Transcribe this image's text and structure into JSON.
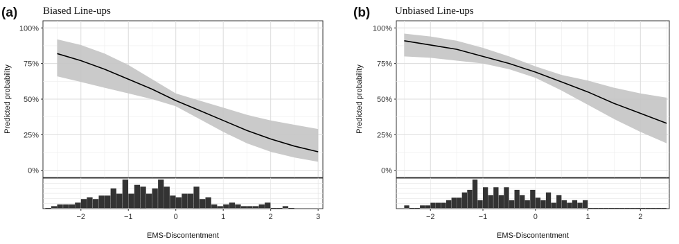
{
  "chart_data": [
    {
      "type": "line",
      "panel_label": "(a)",
      "title": "Biased Line-ups",
      "xlabel": "EMS-Discontentment",
      "ylabel": "Predicted probability",
      "xlim": [
        -2.8,
        3.1
      ],
      "ylim": [
        -0.05,
        1.05
      ],
      "x_ticks": [
        -2,
        -1,
        0,
        1,
        2,
        3
      ],
      "y_ticks": [
        0,
        0.25,
        0.5,
        0.75,
        1.0
      ],
      "y_tick_labels": [
        "0%",
        "25%",
        "50%",
        "75%",
        "100%"
      ],
      "grid": true,
      "series": [
        {
          "x": [
            -2.5,
            -2.0,
            -1.5,
            -1.0,
            -0.5,
            0.0,
            0.5,
            1.0,
            1.5,
            2.0,
            2.5,
            3.0
          ],
          "y": [
            0.82,
            0.77,
            0.71,
            0.64,
            0.57,
            0.49,
            0.42,
            0.35,
            0.28,
            0.22,
            0.17,
            0.13
          ],
          "lower": [
            0.66,
            0.62,
            0.58,
            0.54,
            0.5,
            0.45,
            0.36,
            0.27,
            0.19,
            0.13,
            0.09,
            0.06
          ],
          "upper": [
            0.92,
            0.88,
            0.82,
            0.74,
            0.64,
            0.54,
            0.49,
            0.44,
            0.39,
            0.35,
            0.32,
            0.29
          ]
        }
      ],
      "histogram": {
        "bin_start": -2.75,
        "bin_width": 0.125,
        "counts": [
          0,
          1,
          2,
          2,
          2,
          3,
          5,
          6,
          5,
          7,
          7,
          11,
          8,
          16,
          8,
          13,
          12,
          8,
          11,
          16,
          12,
          7,
          6,
          8,
          8,
          12,
          5,
          6,
          2,
          1,
          2,
          3,
          2,
          1,
          1,
          1,
          2,
          3,
          0,
          0,
          1,
          0
        ]
      }
    },
    {
      "type": "line",
      "panel_label": "(b)",
      "title": "Unbiased Line-ups",
      "xlabel": "EMS-Discontentment",
      "ylabel": "Predicted probability",
      "xlim": [
        -2.65,
        2.55
      ],
      "ylim": [
        -0.05,
        1.05
      ],
      "x_ticks": [
        -2,
        -1,
        0,
        1,
        2
      ],
      "y_ticks": [
        0,
        0.25,
        0.5,
        0.75,
        1.0
      ],
      "y_tick_labels": [
        "0%",
        "25%",
        "50%",
        "75%",
        "100%"
      ],
      "grid": true,
      "series": [
        {
          "x": [
            -2.5,
            -2.0,
            -1.5,
            -1.0,
            -0.5,
            0.0,
            0.5,
            1.0,
            1.5,
            2.0,
            2.5
          ],
          "y": [
            0.91,
            0.88,
            0.85,
            0.8,
            0.75,
            0.69,
            0.62,
            0.55,
            0.47,
            0.4,
            0.33
          ],
          "lower": [
            0.8,
            0.79,
            0.77,
            0.75,
            0.71,
            0.65,
            0.56,
            0.46,
            0.36,
            0.27,
            0.19
          ],
          "upper": [
            0.96,
            0.94,
            0.91,
            0.86,
            0.8,
            0.73,
            0.67,
            0.63,
            0.58,
            0.54,
            0.51
          ]
        }
      ],
      "histogram": {
        "bin_start": -2.5,
        "bin_width": 0.1,
        "counts": [
          1,
          0,
          0,
          1,
          1,
          2,
          2,
          2,
          3,
          4,
          4,
          6,
          7,
          11,
          3,
          8,
          5,
          8,
          5,
          8,
          3,
          7,
          5,
          3,
          7,
          4,
          3,
          6,
          2,
          5,
          3,
          2,
          3,
          2,
          3,
          0,
          0,
          0,
          0,
          0,
          0,
          0,
          0,
          0,
          0,
          0,
          0,
          0,
          0,
          0,
          0
        ]
      }
    }
  ]
}
